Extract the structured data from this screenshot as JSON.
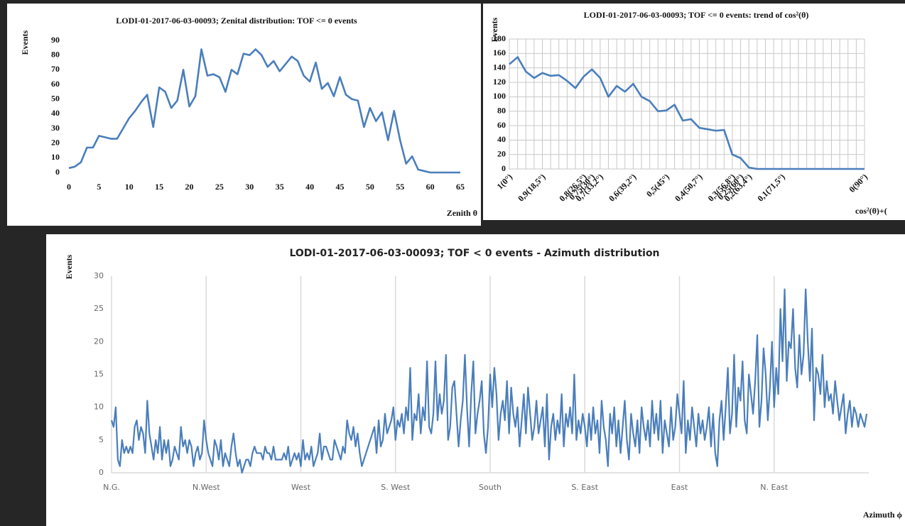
{
  "chart_data": [
    {
      "type": "line",
      "title": "LODI-01-2017-06-03-00093; Zenital distribution: TOF <= 0 events",
      "ylabel": "Events",
      "xlabel": "Zenith θ",
      "x": [
        0,
        1,
        2,
        3,
        4,
        5,
        6,
        7,
        8,
        9,
        10,
        11,
        12,
        13,
        14,
        15,
        16,
        17,
        18,
        19,
        20,
        21,
        22,
        23,
        24,
        25,
        26,
        27,
        28,
        29,
        30,
        31,
        32,
        33,
        34,
        35,
        36,
        37,
        38,
        39,
        40,
        41,
        42,
        43,
        44,
        45,
        46,
        47,
        48,
        49,
        50,
        51,
        52,
        53,
        54,
        55,
        56,
        57,
        58,
        59,
        60,
        61,
        62,
        63,
        64,
        65
      ],
      "series": [
        {
          "name": "Events",
          "color": "#4a7ebb",
          "values": [
            3,
            4,
            7,
            17,
            17,
            25,
            24,
            23,
            23,
            30,
            37,
            42,
            48,
            53,
            31,
            58,
            55,
            44,
            49,
            70,
            45,
            52,
            84,
            66,
            67,
            65,
            55,
            70,
            67,
            81,
            80,
            84,
            80,
            72,
            76,
            69,
            74,
            79,
            76,
            66,
            62,
            75,
            57,
            61,
            52,
            65,
            53,
            50,
            49,
            31,
            44,
            35,
            41,
            22,
            42,
            22,
            6,
            11,
            2,
            1,
            0,
            0,
            0,
            0,
            0,
            0
          ]
        }
      ],
      "xlim": [
        0,
        65
      ],
      "xticks": [
        0,
        5,
        10,
        15,
        20,
        25,
        30,
        35,
        40,
        45,
        50,
        55,
        60,
        65
      ],
      "ylim": [
        0,
        90
      ],
      "yticks": [
        0,
        10,
        20,
        30,
        40,
        50,
        60,
        70,
        80,
        90
      ],
      "grid": false
    },
    {
      "type": "line",
      "title": "LODI-01-2017-06-03-00093; TOF <= 0 events: trend of cos²(θ)",
      "ylabel": "Events",
      "xlabel": "cos²(θ)+(",
      "categories": [
        "1(0°)",
        null,
        null,
        null,
        "0,9(18,5°)",
        null,
        null,
        null,
        null,
        "0,8(26,5°)",
        "0,75(30°)",
        "0,7(33,2°)",
        null,
        null,
        null,
        "0,6(39,2°)",
        null,
        null,
        null,
        "0,5(45°)",
        null,
        null,
        null,
        "0,4(50,7°)",
        null,
        null,
        null,
        "0,3(56,8°)",
        "0,25(60°)",
        "0,2(63,4°)",
        null,
        null,
        null,
        "0,1(71,5°)",
        null,
        null,
        null,
        null,
        null,
        null,
        null,
        null,
        null,
        "0(90°)"
      ],
      "series": [
        {
          "name": "Events",
          "color": "#4a7ebb",
          "values": [
            145,
            155,
            135,
            126,
            133,
            129,
            130,
            122,
            112,
            128,
            138,
            126,
            100,
            115,
            107,
            118,
            100,
            94,
            80,
            81,
            89,
            67,
            69,
            57,
            55,
            53,
            54,
            20,
            15,
            2,
            0,
            0,
            0,
            0,
            0,
            0,
            0,
            0,
            0,
            0,
            0,
            0,
            0,
            0
          ]
        }
      ],
      "ylim": [
        0,
        180
      ],
      "yticks": [
        0,
        20,
        40,
        60,
        80,
        100,
        120,
        140,
        160,
        180
      ],
      "grid": true
    },
    {
      "type": "line",
      "title": "LODI-01-2017-06-03-00093; TOF < 0 events - Azimuth distribution",
      "ylabel": "Events",
      "xlabel": "Azimuth ϕ",
      "x": [
        0,
        1,
        2,
        3,
        4,
        5,
        6,
        7,
        8,
        9,
        10,
        11,
        12,
        13,
        14,
        15,
        16,
        17,
        18,
        19,
        20,
        21,
        22,
        23,
        24,
        25,
        26,
        27,
        28,
        29,
        30,
        31,
        32,
        33,
        34,
        35,
        36,
        37,
        38,
        39,
        40,
        41,
        42,
        43,
        44,
        45,
        46,
        47,
        48,
        49,
        50,
        51,
        52,
        53,
        54,
        55,
        56,
        57,
        58,
        59,
        60,
        61,
        62,
        63,
        64,
        65,
        66,
        67,
        68,
        69,
        70,
        71,
        72,
        73,
        74,
        75,
        76,
        77,
        78,
        79,
        80,
        81,
        82,
        83,
        84,
        85,
        86,
        87,
        88,
        89,
        90,
        91,
        92,
        93,
        94,
        95,
        96,
        97,
        98,
        99,
        100,
        101,
        102,
        103,
        104,
        105,
        106,
        107,
        108,
        109,
        110,
        111,
        112,
        113,
        114,
        115,
        116,
        117,
        118,
        119,
        120,
        121,
        122,
        123,
        124,
        125,
        126,
        127,
        128,
        129,
        130,
        131,
        132,
        133,
        134,
        135,
        136,
        137,
        138,
        139,
        140,
        141,
        142,
        143,
        144,
        145,
        146,
        147,
        148,
        149,
        150,
        151,
        152,
        153,
        154,
        155,
        156,
        157,
        158,
        159,
        160,
        161,
        162,
        163,
        164,
        165,
        166,
        167,
        168,
        169,
        170,
        171,
        172,
        173,
        174,
        175,
        176,
        177,
        178,
        179,
        180,
        181,
        182,
        183,
        184,
        185,
        186,
        187,
        188,
        189,
        190,
        191,
        192,
        193,
        194,
        195,
        196,
        197,
        198,
        199,
        200,
        201,
        202,
        203,
        204,
        205,
        206,
        207,
        208,
        209,
        210,
        211,
        212,
        213,
        214,
        215,
        216,
        217,
        218,
        219,
        220,
        221,
        222,
        223,
        224,
        225,
        226,
        227,
        228,
        229,
        230,
        231,
        232,
        233,
        234,
        235,
        236,
        237,
        238,
        239,
        240,
        241,
        242,
        243,
        244,
        245,
        246,
        247,
        248,
        249,
        250,
        251,
        252,
        253,
        254,
        255,
        256,
        257,
        258,
        259,
        260,
        261,
        262,
        263,
        264,
        265,
        266,
        267,
        268,
        269,
        270,
        271,
        272,
        273,
        274,
        275,
        276,
        277,
        278,
        279,
        280,
        281,
        282,
        283,
        284,
        285,
        286,
        287,
        288,
        289,
        290,
        291,
        292,
        293,
        294,
        295,
        296,
        297,
        298,
        299,
        300,
        301,
        302,
        303,
        304,
        305,
        306,
        307,
        308,
        309,
        310,
        311,
        312,
        313,
        314,
        315,
        316,
        317,
        318,
        319,
        320,
        321,
        322,
        323,
        324,
        325,
        326,
        327,
        328,
        329,
        330,
        331,
        332,
        333,
        334,
        335,
        336,
        337,
        338,
        339,
        340,
        341,
        342,
        343,
        344,
        345,
        346,
        347,
        348,
        349,
        350,
        351,
        352,
        353,
        354,
        355,
        356,
        357,
        358,
        359
      ],
      "series": [
        {
          "name": "Events",
          "color": "#4a7ebb",
          "values": [
            8,
            7,
            10,
            2,
            1,
            5,
            3,
            4,
            3,
            4,
            3,
            7,
            8,
            5,
            7,
            6,
            3,
            11,
            6,
            4,
            2,
            5,
            3,
            7,
            2,
            5,
            3,
            5,
            1,
            2,
            4,
            3,
            2,
            7,
            4,
            5,
            3,
            5,
            4,
            1,
            3,
            4,
            2,
            3,
            8,
            5,
            3,
            2,
            1,
            5,
            4,
            2,
            5,
            1,
            3,
            2,
            1,
            4,
            6,
            3,
            1,
            2,
            0,
            1,
            2,
            2,
            1,
            3,
            4,
            3,
            3,
            3,
            2,
            4,
            3,
            3,
            2,
            4,
            2,
            2,
            2,
            2,
            3,
            2,
            4,
            1,
            2,
            3,
            2,
            3,
            1,
            5,
            2,
            3,
            2,
            4,
            1,
            2,
            3,
            6,
            2,
            4,
            4,
            3,
            2,
            2,
            5,
            4,
            3,
            2,
            4,
            3,
            8,
            6,
            5,
            7,
            4,
            6,
            3,
            1,
            2,
            3,
            4,
            5,
            6,
            7,
            3,
            8,
            4,
            5,
            9,
            6,
            7,
            8,
            10,
            5,
            8,
            7,
            9,
            6,
            10,
            8,
            16,
            5,
            9,
            8,
            12,
            6,
            10,
            8,
            17,
            7,
            6,
            9,
            17,
            8,
            12,
            9,
            11,
            18,
            5,
            7,
            13,
            14,
            9,
            4,
            8,
            11,
            18,
            10,
            4,
            12,
            17,
            6,
            9,
            11,
            14,
            6,
            3,
            7,
            15,
            10,
            16,
            12,
            5,
            9,
            11,
            8,
            14,
            6,
            13,
            9,
            7,
            10,
            4,
            8,
            12,
            6,
            13,
            9,
            5,
            7,
            11,
            6,
            8,
            10,
            4,
            12,
            2,
            7,
            9,
            5,
            8,
            6,
            12,
            4,
            9,
            7,
            10,
            6,
            15,
            5,
            8,
            6,
            9,
            7,
            4,
            9,
            5,
            10,
            6,
            8,
            3,
            11,
            7,
            5,
            1,
            9,
            6,
            10,
            4,
            8,
            3,
            7,
            11,
            5,
            2,
            9,
            6,
            4,
            8,
            3,
            10,
            7,
            5,
            8,
            4,
            11,
            6,
            9,
            5,
            11,
            3,
            8,
            6,
            4,
            10,
            5,
            7,
            12,
            9,
            6,
            14,
            3,
            8,
            5,
            10,
            7,
            4,
            9,
            6,
            8,
            5,
            7,
            10,
            4,
            9,
            3,
            1,
            8,
            11,
            5,
            10,
            16,
            6,
            9,
            18,
            7,
            13,
            11,
            17,
            8,
            6,
            15,
            12,
            9,
            14,
            21,
            7,
            11,
            19,
            15,
            8,
            13,
            20,
            10,
            16,
            12,
            25,
            17,
            28,
            14,
            20,
            19,
            25,
            16,
            13,
            21,
            15,
            18,
            28,
            20,
            14,
            22,
            8,
            16,
            15,
            12,
            18,
            10,
            14,
            11,
            12,
            9,
            14,
            11,
            8,
            10,
            12,
            6,
            9,
            11,
            7,
            10,
            9,
            7,
            9,
            8,
            7,
            9
          ]
        }
      ],
      "xlim": [
        0,
        360
      ],
      "xticks": [
        {
          "value": 0,
          "label": "N.G."
        },
        {
          "value": 45,
          "label": "N.West"
        },
        {
          "value": 90,
          "label": "West"
        },
        {
          "value": 135,
          "label": "S. West"
        },
        {
          "value": 180,
          "label": "South"
        },
        {
          "value": 225,
          "label": "S. East"
        },
        {
          "value": 270,
          "label": "East"
        },
        {
          "value": 315,
          "label": "N. East"
        }
      ],
      "ylim": [
        0,
        30
      ],
      "yticks": [
        0,
        5,
        10,
        15,
        20,
        25,
        30
      ],
      "grid": "x"
    }
  ]
}
